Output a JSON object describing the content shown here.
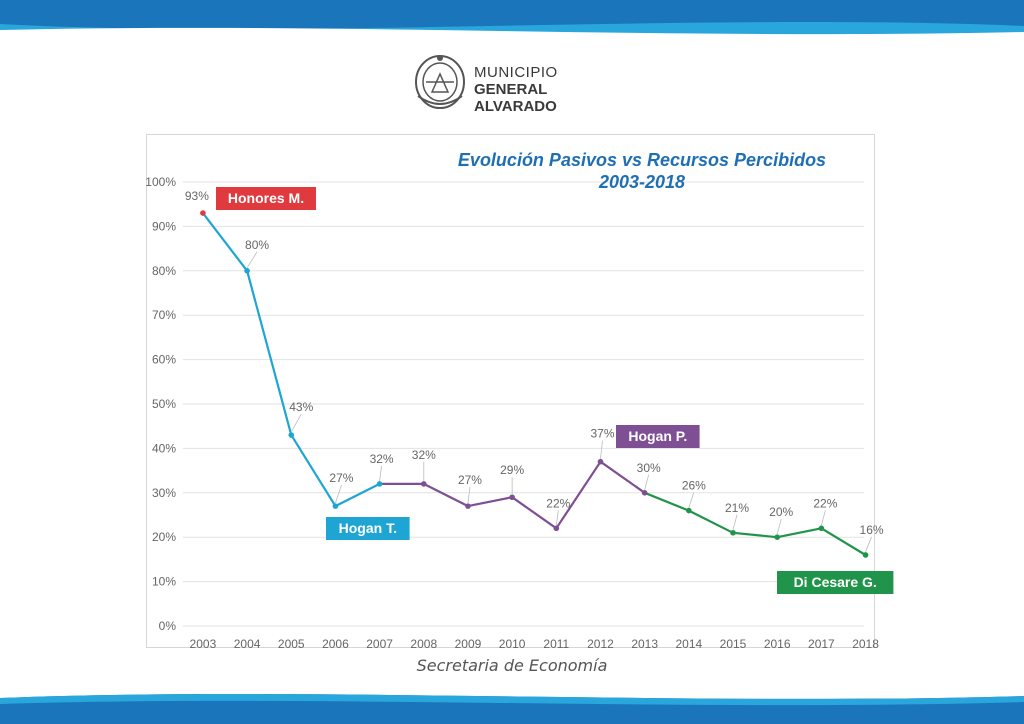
{
  "logo": {
    "line1": "MUNICIPIO",
    "line2": "GENERAL ALVARADO"
  },
  "footer": "Secretaria de Economía",
  "colors": {
    "band": "#1a75bb",
    "honores": "#e03a3e",
    "hogan_t": "#1ea5d4",
    "hogan_p": "#7e4f93",
    "di_cesare": "#21944b",
    "grid": "#e2e2e2",
    "title": "#1f6fb5"
  },
  "chart_data": {
    "type": "line",
    "title": "Evolución Pasivos vs Recursos Percibidos",
    "subtitle": "2003-2018",
    "categories": [
      "2003",
      "2004",
      "2005",
      "2006",
      "2007",
      "2008",
      "2009",
      "2010",
      "2011",
      "2012",
      "2013",
      "2014",
      "2015",
      "2016",
      "2017",
      "2018"
    ],
    "values": [
      93,
      80,
      43,
      27,
      32,
      32,
      27,
      29,
      22,
      37,
      30,
      26,
      21,
      20,
      22,
      16
    ],
    "value_labels": [
      "93%",
      "80%",
      "43%",
      "27%",
      "32%",
      "32%",
      "27%",
      "29%",
      "22%",
      "37%",
      "30%",
      "26%",
      "21%",
      "20%",
      "22%",
      "16%"
    ],
    "ylim": [
      0,
      100
    ],
    "yticks": [
      "0%",
      "10%",
      "20%",
      "30%",
      "40%",
      "50%",
      "60%",
      "70%",
      "80%",
      "90%",
      "100%"
    ],
    "grid": true,
    "segments": [
      {
        "name": "Honores M.",
        "from": "2003",
        "to": "2003",
        "color": "#e03a3e"
      },
      {
        "name": "Hogan T.",
        "from": "2003",
        "to": "2007",
        "color": "#1ea5d4"
      },
      {
        "name": "Hogan P.",
        "from": "2007",
        "to": "2013",
        "color": "#7e4f93"
      },
      {
        "name": "Di Cesare G.",
        "from": "2013",
        "to": "2018",
        "color": "#21944b"
      }
    ]
  }
}
